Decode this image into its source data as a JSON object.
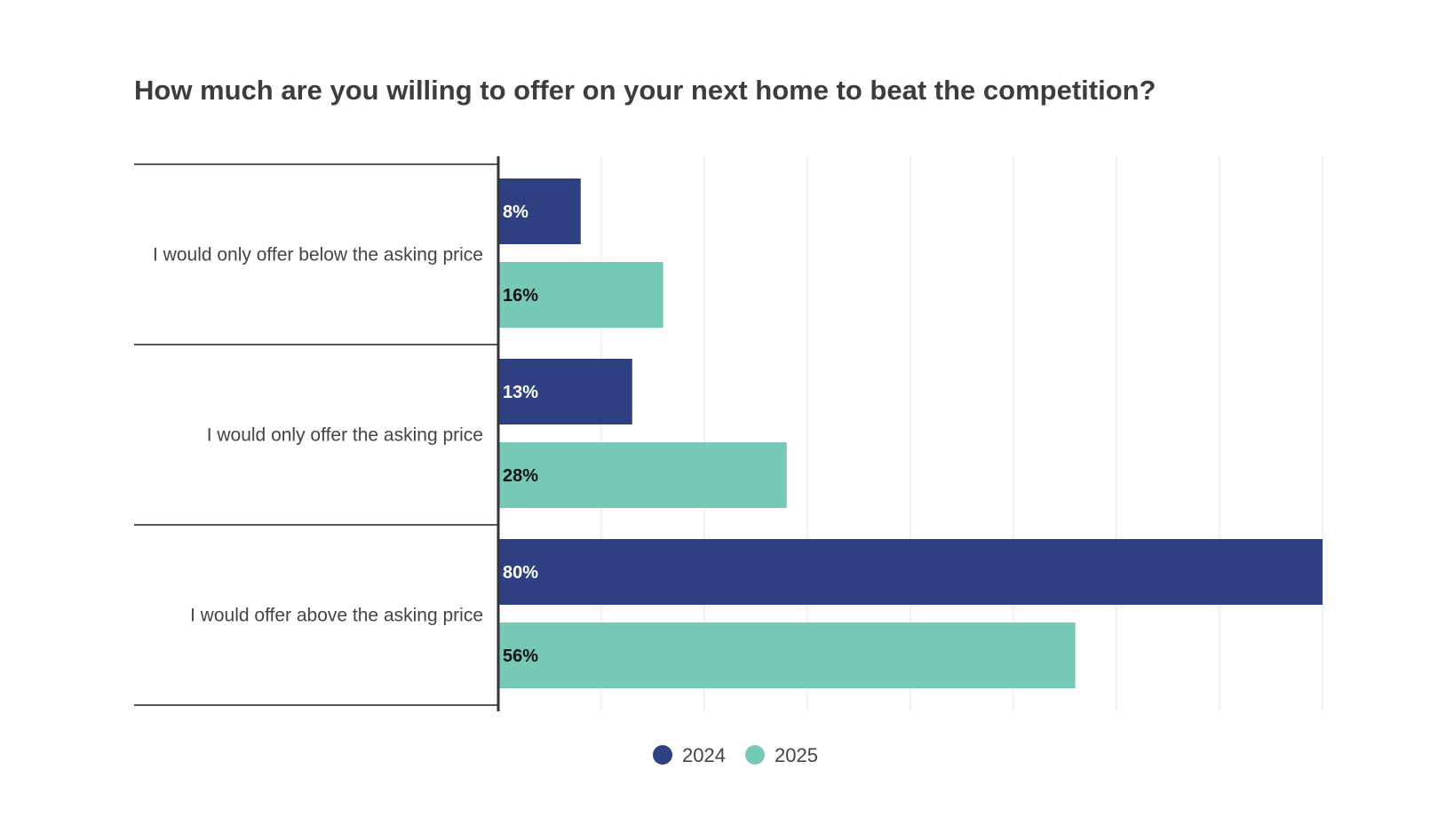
{
  "chart_data": {
    "type": "bar",
    "orientation": "horizontal",
    "title": "How much are you willing to offer on your next home to beat the competition?",
    "categories": [
      "I would only offer below the asking price",
      "I would only offer the asking price",
      "I would offer above the asking price"
    ],
    "series": [
      {
        "name": "2024",
        "color": "#2e3f82",
        "label_color": "#ffffff",
        "values": [
          8,
          13,
          80
        ],
        "labels": [
          "8%",
          "13%",
          "80%"
        ]
      },
      {
        "name": "2025",
        "color": "#76c9b6",
        "label_color": "#111111",
        "values": [
          16,
          28,
          56
        ],
        "labels": [
          "16%",
          "28%",
          "56%"
        ]
      }
    ],
    "xlim": [
      0,
      80
    ],
    "gridlines": true,
    "legend_position": "bottom-center"
  }
}
